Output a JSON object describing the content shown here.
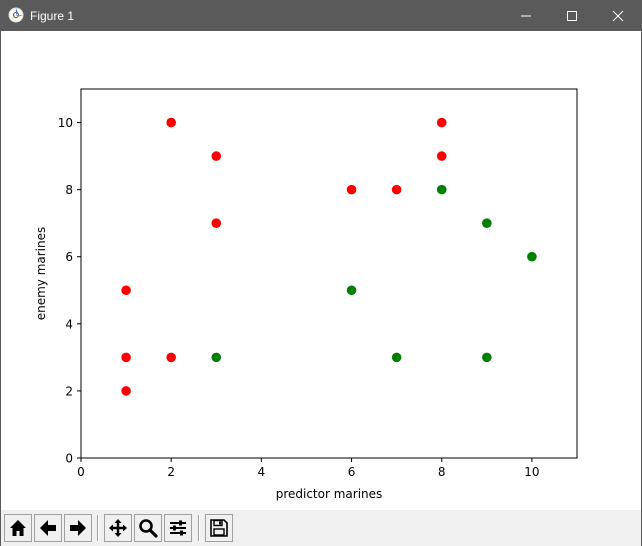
{
  "window": {
    "title": "Figure 1",
    "app_icon": "matplotlib-icon",
    "controls": [
      "minimize-icon",
      "maximize-icon",
      "close-icon"
    ]
  },
  "toolbar": {
    "buttons": [
      {
        "name": "home-button",
        "icon": "home-icon"
      },
      {
        "name": "back-button",
        "icon": "arrow-left-icon"
      },
      {
        "name": "forward-button",
        "icon": "arrow-right-icon"
      },
      {
        "name": "pan-button",
        "icon": "move-icon"
      },
      {
        "name": "zoom-button",
        "icon": "magnifier-icon"
      },
      {
        "name": "subplots-button",
        "icon": "sliders-icon"
      },
      {
        "name": "save-button",
        "icon": "floppy-disk-icon"
      }
    ]
  },
  "chart_data": {
    "type": "scatter",
    "title": "",
    "xlabel": "predictor marines",
    "ylabel": "enemy marines",
    "xlim": [
      0,
      11
    ],
    "ylim": [
      0,
      11
    ],
    "xticks": [
      0,
      2,
      4,
      6,
      8,
      10
    ],
    "yticks": [
      0,
      2,
      4,
      6,
      8,
      10
    ],
    "grid": false,
    "series": [
      {
        "name": "red",
        "color": "#ff0000",
        "points": [
          [
            1,
            2
          ],
          [
            1,
            3
          ],
          [
            1,
            5
          ],
          [
            2,
            3
          ],
          [
            2,
            10
          ],
          [
            3,
            7
          ],
          [
            3,
            9
          ],
          [
            6,
            8
          ],
          [
            7,
            8
          ],
          [
            8,
            9
          ],
          [
            8,
            10
          ]
        ]
      },
      {
        "name": "green",
        "color": "#008000",
        "points": [
          [
            3,
            3
          ],
          [
            6,
            5
          ],
          [
            7,
            3
          ],
          [
            8,
            8
          ],
          [
            9,
            3
          ],
          [
            9,
            7
          ],
          [
            10,
            6
          ]
        ]
      }
    ]
  }
}
